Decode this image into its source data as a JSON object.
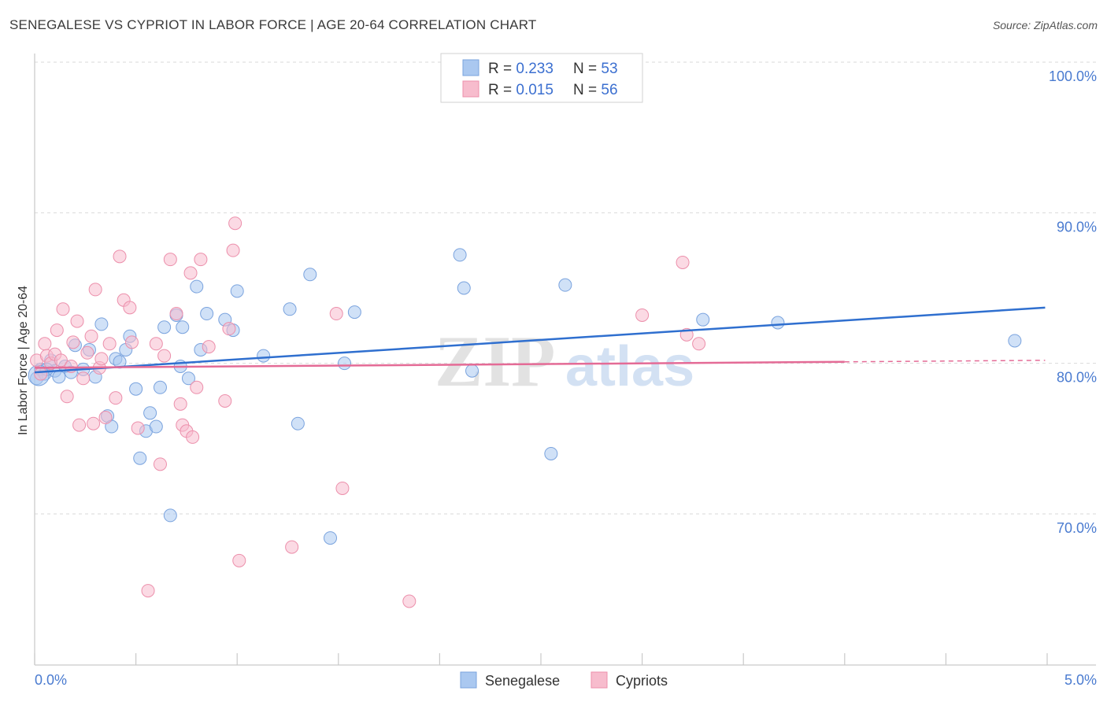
{
  "title": "SENEGALESE VS CYPRIOT IN LABOR FORCE | AGE 20-64 CORRELATION CHART",
  "source": "Source: ZipAtlas.com",
  "watermark": {
    "zip": "ZIP",
    "atlas": "atlas"
  },
  "legend": {
    "rows": [
      {
        "r_label": "R = ",
        "r_value": "0.233",
        "n_label": "N = ",
        "n_value": "53"
      },
      {
        "r_label": "R = ",
        "r_value": "0.015",
        "n_label": "N = ",
        "n_value": "56"
      }
    ]
  },
  "colors": {
    "blue_fill": "#aac8f0",
    "blue_stroke": "#7aa3de",
    "blue_line": "#2f6fcf",
    "pink_fill": "#f7bccd",
    "pink_stroke": "#ec8fab",
    "pink_line": "#e46b96",
    "grid": "#d9d9d9",
    "axis_label": "#4a7bd0"
  },
  "chart_data": {
    "type": "scatter",
    "xlabel": "",
    "ylabel": "In Labor Force | Age 20-64",
    "xlim": [
      0,
      5
    ],
    "ylim": [
      60,
      101.5
    ],
    "x_tick_labels": [
      {
        "value": 0,
        "label": "0.0%"
      },
      {
        "value": 5,
        "label": "5.0%"
      }
    ],
    "y_tick_labels": [
      {
        "value": 70,
        "label": "70.0%"
      },
      {
        "value": 80,
        "label": "80.0%"
      },
      {
        "value": 90,
        "label": "90.0%"
      },
      {
        "value": 100,
        "label": "100.0%"
      }
    ],
    "series": [
      {
        "name": "Senegalese",
        "color": "#aac8f0",
        "trend": {
          "x": [
            0,
            4.99
          ],
          "y": [
            79.4,
            83.7
          ]
        },
        "points": [
          [
            0.01,
            79.0
          ],
          [
            0.03,
            79.6
          ],
          [
            0.05,
            79.3
          ],
          [
            0.08,
            80.2
          ],
          [
            0.1,
            79.5
          ],
          [
            0.12,
            79.1
          ],
          [
            0.15,
            79.8
          ],
          [
            0.18,
            79.4
          ],
          [
            0.2,
            81.2
          ],
          [
            0.24,
            79.6
          ],
          [
            0.27,
            80.9
          ],
          [
            0.3,
            79.1
          ],
          [
            0.33,
            82.6
          ],
          [
            0.36,
            76.5
          ],
          [
            0.38,
            75.8
          ],
          [
            0.4,
            80.3
          ],
          [
            0.42,
            80.1
          ],
          [
            0.45,
            80.9
          ],
          [
            0.47,
            81.8
          ],
          [
            0.5,
            78.3
          ],
          [
            0.52,
            73.7
          ],
          [
            0.55,
            75.5
          ],
          [
            0.57,
            76.7
          ],
          [
            0.6,
            75.8
          ],
          [
            0.62,
            78.4
          ],
          [
            0.64,
            82.4
          ],
          [
            0.67,
            69.9
          ],
          [
            0.7,
            83.2
          ],
          [
            0.72,
            79.8
          ],
          [
            0.73,
            82.4
          ],
          [
            0.76,
            79.0
          ],
          [
            0.8,
            85.1
          ],
          [
            0.82,
            80.9
          ],
          [
            0.85,
            83.3
          ],
          [
            0.94,
            82.9
          ],
          [
            0.98,
            82.2
          ],
          [
            1.0,
            84.8
          ],
          [
            1.13,
            80.5
          ],
          [
            1.26,
            83.6
          ],
          [
            1.3,
            76.0
          ],
          [
            1.36,
            85.9
          ],
          [
            1.46,
            68.4
          ],
          [
            1.53,
            80.0
          ],
          [
            1.58,
            83.4
          ],
          [
            2.1,
            87.2
          ],
          [
            2.12,
            85.0
          ],
          [
            2.16,
            79.5
          ],
          [
            2.55,
            74.0
          ],
          [
            2.62,
            85.2
          ],
          [
            3.3,
            82.9
          ],
          [
            3.67,
            82.7
          ],
          [
            4.84,
            81.5
          ],
          [
            0.06,
            79.6
          ]
        ]
      },
      {
        "name": "Cypriots",
        "color": "#f7bccd",
        "trend": {
          "x": [
            0,
            4.0
          ],
          "y": [
            79.7,
            80.1
          ]
        },
        "trend_dashed": {
          "x": [
            4.0,
            4.99
          ],
          "y": [
            80.1,
            80.2
          ]
        },
        "points": [
          [
            0.01,
            80.2
          ],
          [
            0.03,
            79.3
          ],
          [
            0.05,
            81.3
          ],
          [
            0.06,
            80.5
          ],
          [
            0.08,
            80.0
          ],
          [
            0.1,
            80.6
          ],
          [
            0.11,
            82.2
          ],
          [
            0.13,
            80.2
          ],
          [
            0.14,
            83.6
          ],
          [
            0.16,
            77.8
          ],
          [
            0.18,
            79.8
          ],
          [
            0.19,
            81.4
          ],
          [
            0.21,
            82.8
          ],
          [
            0.22,
            75.9
          ],
          [
            0.24,
            79.0
          ],
          [
            0.26,
            80.7
          ],
          [
            0.28,
            81.8
          ],
          [
            0.29,
            76.0
          ],
          [
            0.3,
            84.9
          ],
          [
            0.32,
            79.7
          ],
          [
            0.33,
            80.3
          ],
          [
            0.35,
            76.4
          ],
          [
            0.37,
            81.3
          ],
          [
            0.4,
            77.7
          ],
          [
            0.42,
            87.1
          ],
          [
            0.44,
            84.2
          ],
          [
            0.47,
            83.7
          ],
          [
            0.48,
            81.4
          ],
          [
            0.51,
            75.7
          ],
          [
            0.56,
            64.9
          ],
          [
            0.6,
            81.3
          ],
          [
            0.62,
            73.3
          ],
          [
            0.64,
            80.5
          ],
          [
            0.67,
            86.9
          ],
          [
            0.7,
            83.3
          ],
          [
            0.72,
            77.3
          ],
          [
            0.73,
            75.9
          ],
          [
            0.75,
            75.5
          ],
          [
            0.77,
            86.0
          ],
          [
            0.78,
            75.1
          ],
          [
            0.8,
            78.4
          ],
          [
            0.82,
            86.9
          ],
          [
            0.86,
            81.1
          ],
          [
            0.94,
            77.5
          ],
          [
            0.96,
            82.3
          ],
          [
            0.98,
            87.5
          ],
          [
            0.99,
            89.3
          ],
          [
            1.01,
            66.9
          ],
          [
            1.27,
            67.8
          ],
          [
            1.49,
            83.3
          ],
          [
            1.52,
            71.7
          ],
          [
            1.85,
            64.2
          ],
          [
            3.0,
            83.2
          ],
          [
            3.2,
            86.7
          ],
          [
            3.22,
            81.9
          ],
          [
            3.28,
            81.3
          ]
        ]
      }
    ]
  }
}
